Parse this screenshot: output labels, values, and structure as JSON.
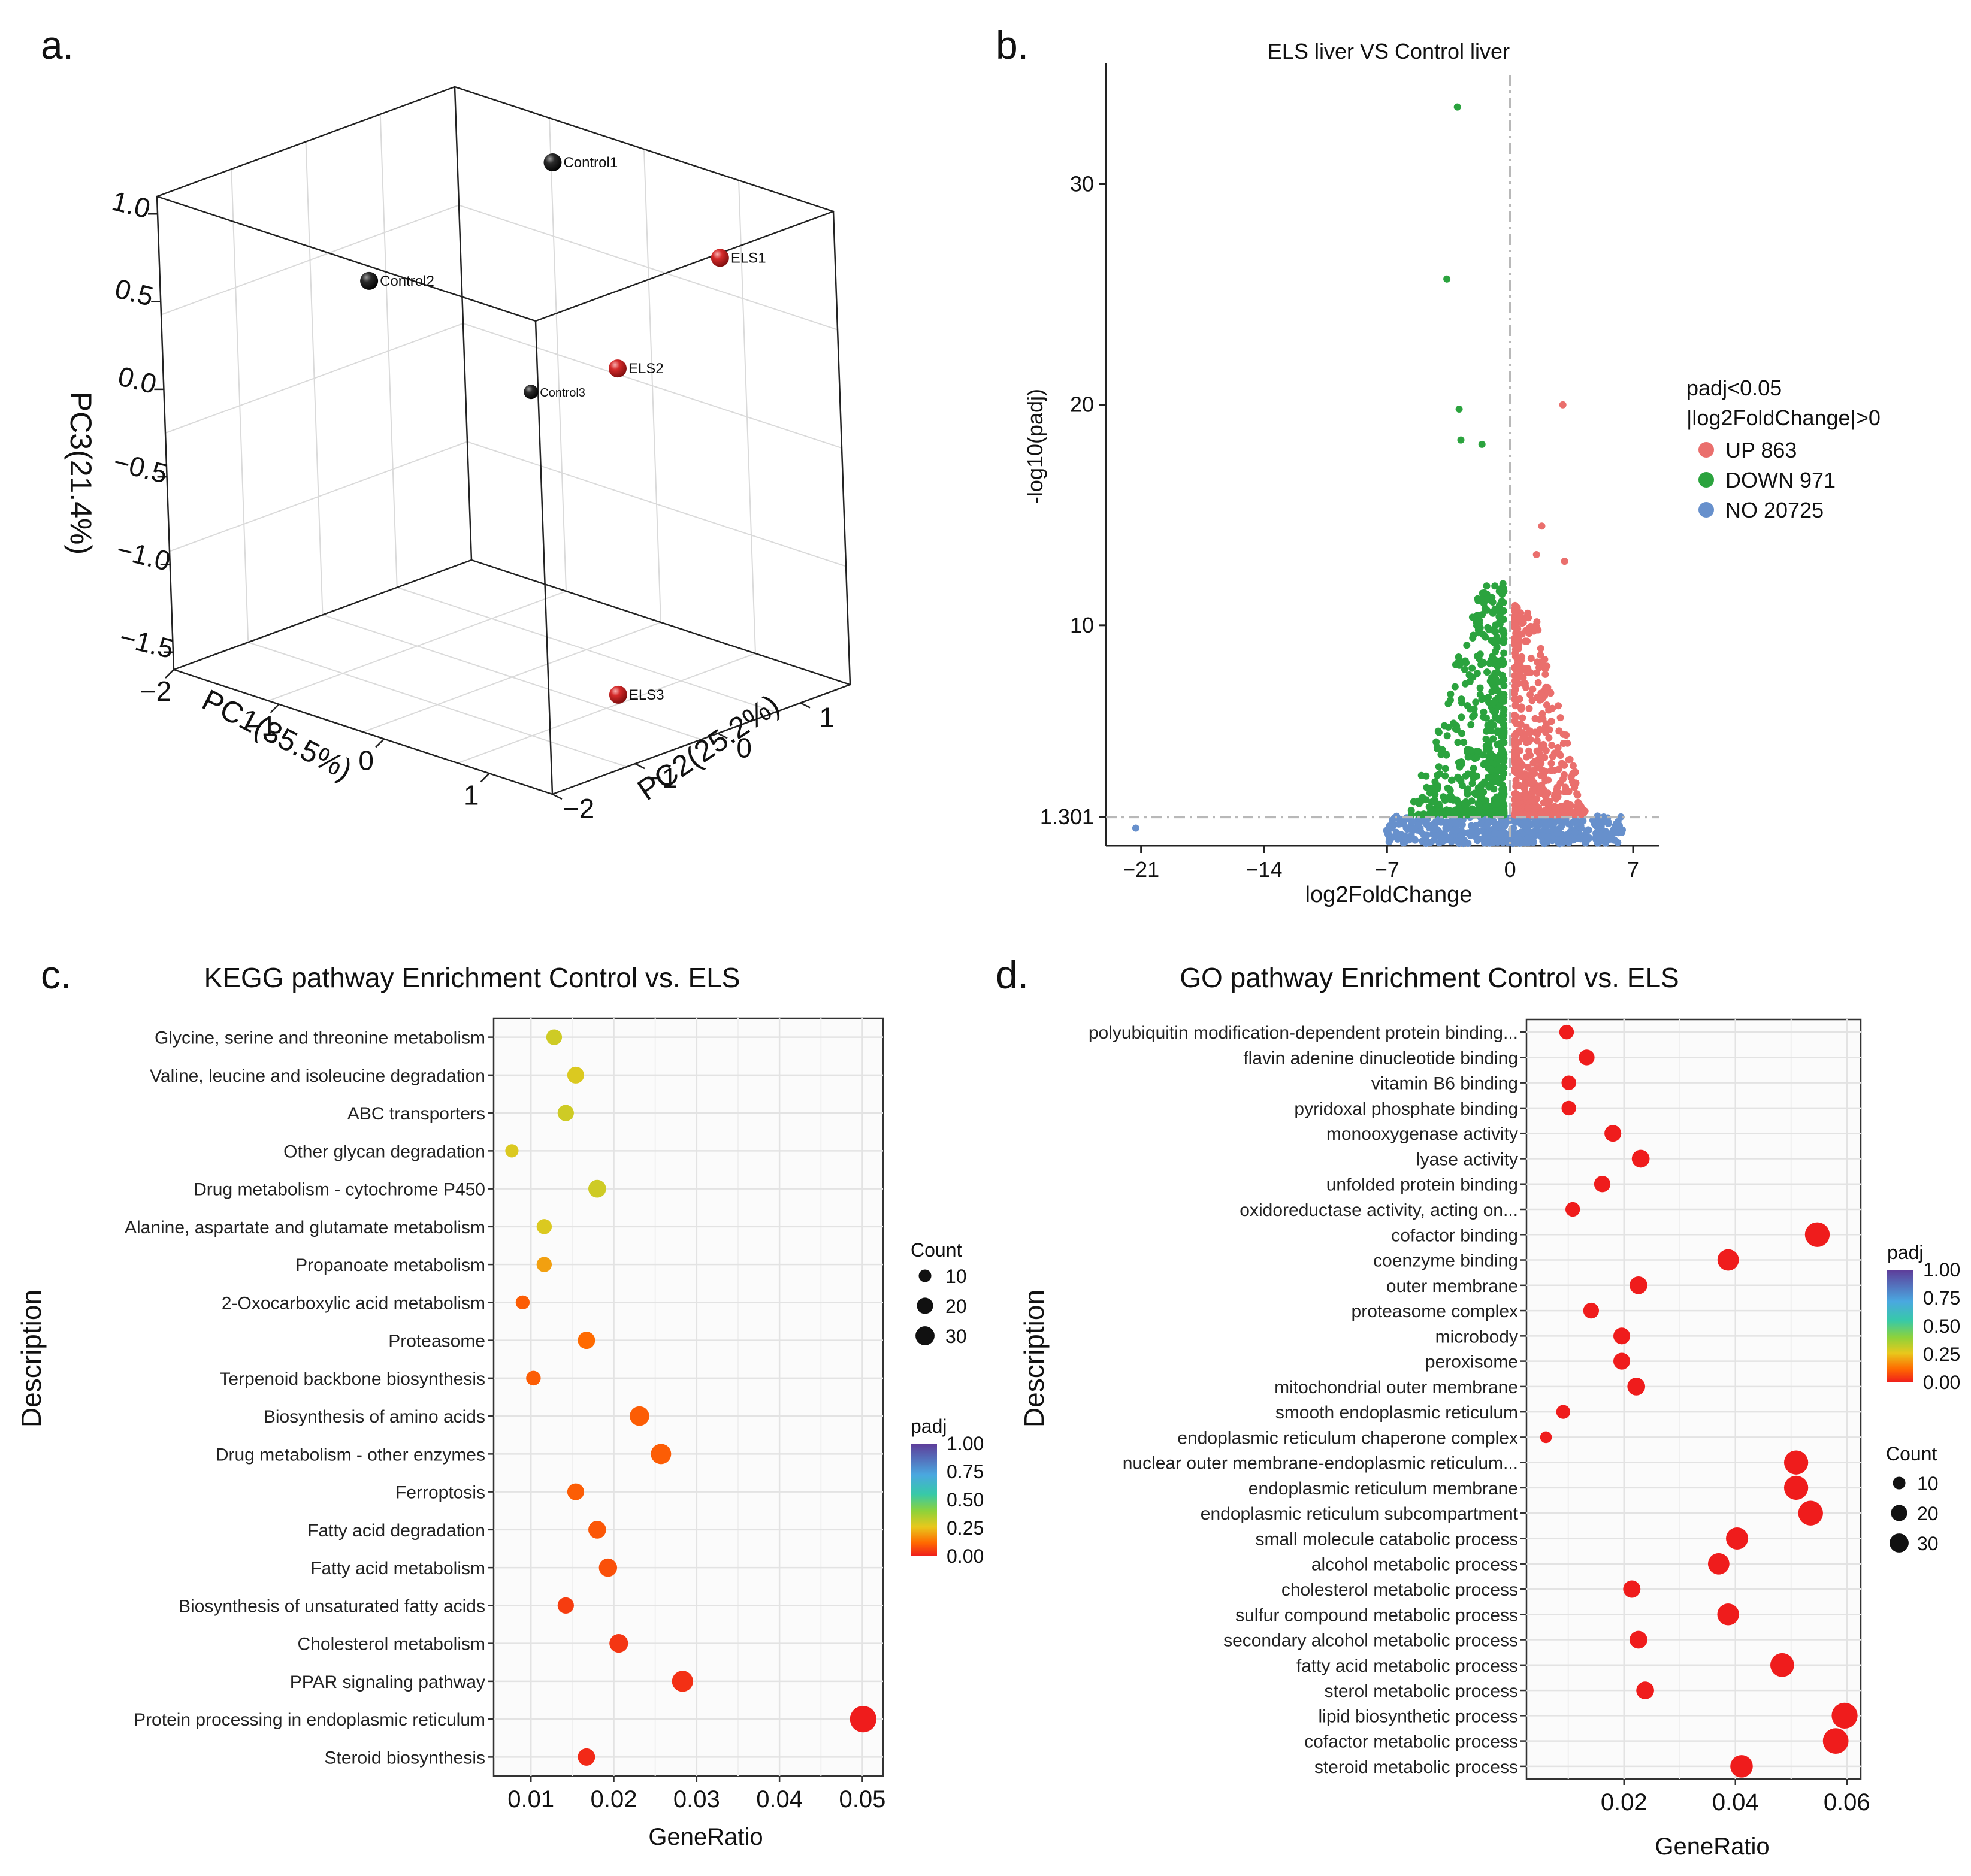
{
  "chart_data": [
    {
      "panel": "a.",
      "type": "scatter",
      "title": "",
      "xlabel": "PC1(35.5%)",
      "ylabel": "PC2(25.2%)",
      "zlabel": "PC3(21.4%)",
      "x_ticks": [
        "−2",
        "−1",
        "0",
        "1"
      ],
      "y_ticks": [
        "−2",
        "−1",
        "0",
        "1"
      ],
      "z_ticks": [
        "1.0",
        "0.5",
        "0.0",
        "−0.5",
        "−1.0",
        "−1.5"
      ],
      "xlim": [
        -2,
        1.6
      ],
      "ylim": [
        -2,
        1.6
      ],
      "zlim": [
        -1.6,
        1.1
      ],
      "points": [
        {
          "label": "Control1",
          "pc1": -0.6,
          "pc2": 1.0,
          "pc3": 1.05,
          "group": "Control"
        },
        {
          "label": "ELS1",
          "pc1": 1.3,
          "pc2": 0.6,
          "pc3": 0.95,
          "group": "ELS"
        },
        {
          "label": "Control2",
          "pc1": -1.6,
          "pc2": 0.0,
          "pc3": 0.35,
          "group": "Control"
        },
        {
          "label": "ELS2",
          "pc1": 0.6,
          "pc2": 0.2,
          "pc3": 0.25,
          "group": "ELS"
        },
        {
          "label": "Control3",
          "pc1": 0.0,
          "pc2": -0.1,
          "pc3": 0.05,
          "group": "Control"
        },
        {
          "label": "ELS3",
          "pc1": 1.3,
          "pc2": -0.8,
          "pc3": -1.3,
          "group": "ELS"
        }
      ],
      "colors": {
        "Control": "#111111",
        "ELS": "#c0181d"
      }
    },
    {
      "panel": "b.",
      "type": "scatter",
      "title": "ELS liver VS  Control liver",
      "xlabel": "log2FoldChange",
      "ylabel": "-log10(padj)",
      "x_ticks": [
        "−21",
        "−14",
        "−7",
        "0",
        "7"
      ],
      "y_ticks": [
        "1.301",
        "10",
        "20",
        "30"
      ],
      "xlim": [
        -23,
        8.5
      ],
      "ylim": [
        0,
        35.5
      ],
      "threshold_y": 1.301,
      "threshold_x": 0,
      "legend_title": [
        "padj<0.05",
        "|log2FoldChange|>0"
      ],
      "series": [
        {
          "name": "UP 863",
          "color": "#ea6f6d"
        },
        {
          "name": "DOWN 971",
          "color": "#2ba33e"
        },
        {
          "name": "NO 20725",
          "color": "#6790cc"
        }
      ],
      "outlier_points": [
        {
          "x": -3.0,
          "y": 33.5,
          "group": "DOWN"
        },
        {
          "x": -3.6,
          "y": 25.7,
          "group": "DOWN"
        },
        {
          "x": -2.9,
          "y": 19.8,
          "group": "DOWN"
        },
        {
          "x": -2.8,
          "y": 18.4,
          "group": "DOWN"
        },
        {
          "x": -1.6,
          "y": 18.2,
          "group": "DOWN"
        },
        {
          "x": 3.0,
          "y": 20.0,
          "group": "UP"
        },
        {
          "x": 1.8,
          "y": 14.5,
          "group": "UP"
        },
        {
          "x": 1.5,
          "y": 13.2,
          "group": "UP"
        },
        {
          "x": 3.1,
          "y": 12.9,
          "group": "UP"
        },
        {
          "x": -21.3,
          "y": 0.8,
          "group": "NO"
        }
      ]
    },
    {
      "panel": "c.",
      "type": "scatter",
      "title": "KEGG pathway Enrichment Control vs. ELS",
      "xlabel": "GeneRatio",
      "ylabel": "Description",
      "xlim": [
        0.0055,
        0.0525
      ],
      "x_ticks": [
        0.01,
        0.02,
        0.03,
        0.04,
        0.05
      ],
      "size_legend": {
        "title": "Count",
        "values": [
          10,
          20,
          30
        ]
      },
      "color_legend": {
        "title": "padj",
        "ticks": [
          "1.00",
          "0.75",
          "0.50",
          "0.25",
          "0.00"
        ]
      },
      "categories": [
        "Glycine, serine and threonine metabolism",
        "Valine, leucine and isoleucine degradation",
        "ABC transporters",
        "Other glycan degradation",
        "Drug metabolism - cytochrome P450",
        "Alanine,  aspartate and glutamate metabolism",
        "Propanoate metabolism",
        "2-Oxocarboxylic acid metabolism",
        "Proteasome",
        "Terpenoid backbone biosynthesis",
        "Biosynthesis of amino acids",
        "Drug metabolism - other enzymes",
        "Ferroptosis",
        "Fatty acid degradation",
        "Fatty acid metabolism",
        "Biosynthesis of unsaturated fatty acids",
        "Cholesterol metabolism",
        "PPAR signaling pathway",
        "Protein processing in endoplasmic reticulum",
        "Steroid biosynthesis"
      ],
      "gene_ratio": [
        0.0128,
        0.0154,
        0.0142,
        0.0077,
        0.018,
        0.0116,
        0.0116,
        0.009,
        0.0167,
        0.0103,
        0.0231,
        0.0257,
        0.0154,
        0.018,
        0.0193,
        0.0142,
        0.0206,
        0.0283,
        0.0501,
        0.0167
      ],
      "count": [
        10,
        12,
        11,
        6,
        14,
        9,
        9,
        7,
        13,
        8,
        18,
        20,
        12,
        14,
        15,
        11,
        16,
        22,
        39,
        13
      ],
      "padj": [
        0.3,
        0.28,
        0.3,
        0.28,
        0.3,
        0.28,
        0.2,
        0.1,
        0.12,
        0.1,
        0.1,
        0.1,
        0.1,
        0.09,
        0.08,
        0.05,
        0.04,
        0.03,
        0.0,
        0.02
      ]
    },
    {
      "panel": "d.",
      "type": "scatter",
      "title": "GO pathway Enrichment Control vs. ELS",
      "xlabel": "GeneRatio",
      "ylabel": "Description",
      "xlim": [
        0.0025,
        0.0625
      ],
      "x_ticks": [
        0.02,
        0.04,
        0.06
      ],
      "size_legend": {
        "title": "Count",
        "values": [
          10,
          20,
          30
        ]
      },
      "color_legend": {
        "title": "padj",
        "ticks": [
          "1.00",
          "0.75",
          "0.50",
          "0.25",
          "0.00"
        ]
      },
      "categories": [
        "polyubiquitin modification-dependent protein binding...",
        "flavin adenine dinucleotide binding",
        "vitamin B6 binding",
        "pyridoxal phosphate binding",
        "monooxygenase activity",
        "lyase activity",
        "unfolded protein binding",
        "oxidoreductase activity, acting on...",
        "cofactor binding",
        "coenzyme binding",
        "outer membrane",
        "proteasome complex",
        "microbody",
        "peroxisome",
        "mitochondrial outer membrane",
        "smooth endoplasmic reticulum",
        "endoplasmic reticulum chaperone complex",
        "nuclear outer membrane-endoplasmic reticulum...",
        "endoplasmic reticulum membrane",
        "endoplasmic reticulum subcompartment",
        "small molecule catabolic process",
        "alcohol metabolic process",
        "cholesterol metabolic process",
        "sulfur compound metabolic process",
        "secondary alcohol metabolic process ",
        "fatty acid metabolic process",
        "sterol metabolic process",
        "lipid biosynthetic process",
        "cofactor metabolic process",
        "steroid metabolic process"
      ],
      "gene_ratio": [
        0.0097,
        0.0133,
        0.0101,
        0.0101,
        0.018,
        0.023,
        0.0161,
        0.0108,
        0.0547,
        0.0387,
        0.0226,
        0.0141,
        0.0196,
        0.0196,
        0.0222,
        0.0091,
        0.006,
        0.0509,
        0.0509,
        0.0535,
        0.0403,
        0.037,
        0.0214,
        0.0387,
        0.0226,
        0.0484,
        0.0238,
        0.0596,
        0.058,
        0.0411
      ],
      "count": [
        8,
        10,
        8,
        8,
        12,
        14,
        11,
        8,
        33,
        23,
        14,
        10,
        12,
        12,
        14,
        7,
        4,
        31,
        31,
        33,
        25,
        23,
        13,
        24,
        14,
        30,
        14,
        37,
        36,
        26
      ],
      "padj": [
        0.0,
        0.0,
        0.0,
        0.0,
        0.0,
        0.0,
        0.0,
        0.0,
        0.0,
        0.0,
        0.0,
        0.0,
        0.0,
        0.0,
        0.0,
        0.0,
        0.0,
        0.0,
        0.0,
        0.0,
        0.0,
        0.0,
        0.0,
        0.0,
        0.0,
        0.0,
        0.0,
        0.0,
        0.0,
        0.0
      ]
    }
  ]
}
